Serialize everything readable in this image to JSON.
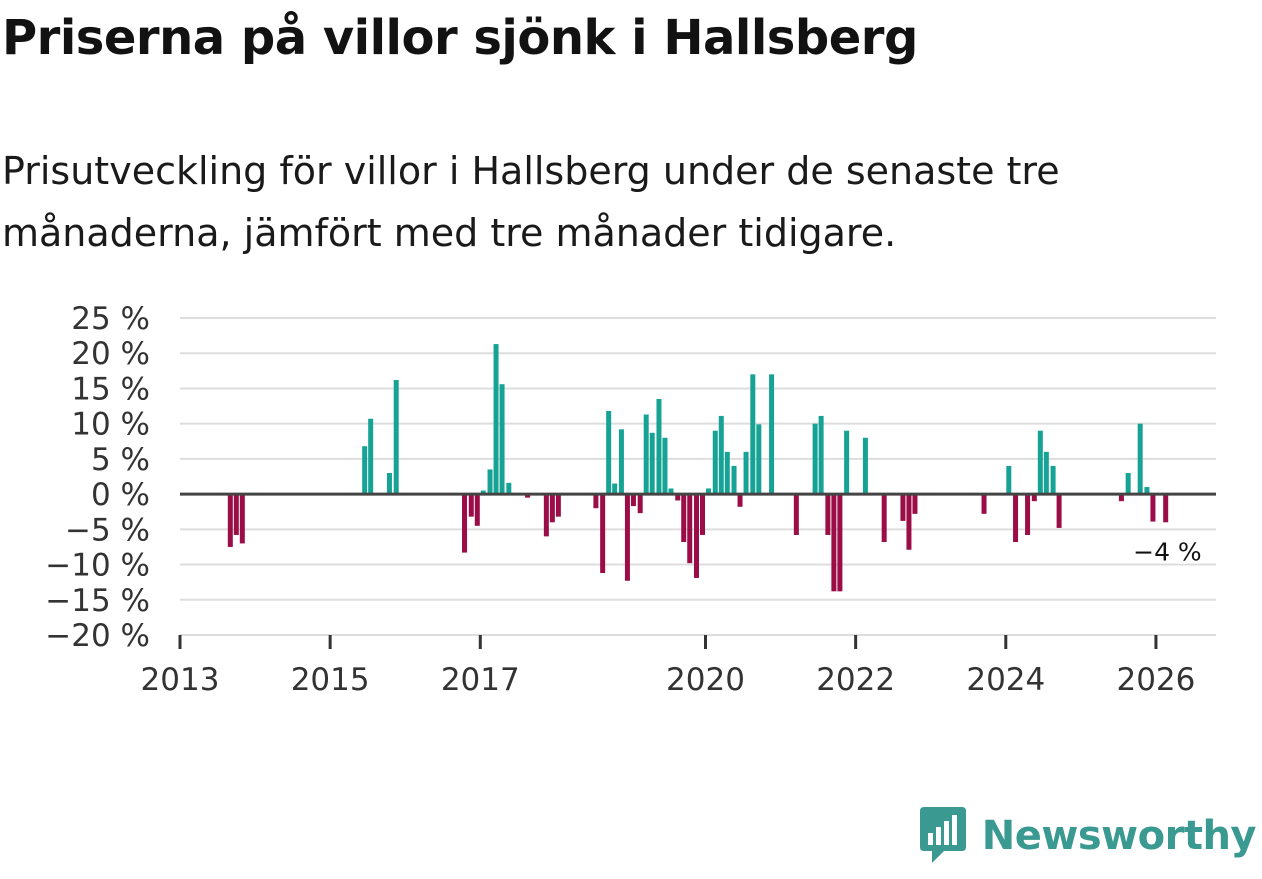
{
  "header": {
    "title": "Priserna på villor sjönk i Hallsberg",
    "subtitle": "Prisutveckling för villor i Hallsberg under de senaste tre månaderna, jämfört med tre månader tidigare."
  },
  "brand": {
    "name": "Newsworthy",
    "icon": "newsworthy-logo-icon",
    "color": "#3a9a91"
  },
  "colors": {
    "positive": "#16a395",
    "negative": "#9b0d47",
    "zero_line": "#444444",
    "grid": "#dddddd"
  },
  "chart_data": {
    "type": "bar",
    "title": "Priserna på villor sjönk i Hallsberg",
    "ylim": [
      -20,
      25
    ],
    "yticks": [
      25,
      20,
      15,
      10,
      5,
      0,
      -5,
      -10,
      -15,
      -20
    ],
    "ytick_labels": [
      "25 %",
      "20 %",
      "15 %",
      "10 %",
      "5 %",
      "0 %",
      "−5 %",
      "−10 %",
      "−15 %",
      "−20 %"
    ],
    "xlim": [
      2013,
      2026.8
    ],
    "xticks": [
      2013,
      2015,
      2017,
      2020,
      2022,
      2024,
      2026
    ],
    "xtick_labels": [
      "2013",
      "2015",
      "2017",
      "2020",
      "2022",
      "2024",
      "2026"
    ],
    "last_value_label": "−4 %",
    "series": [
      {
        "name": "Prisutveckling",
        "x": [
          2013.67,
          2013.75,
          2013.83,
          2015.46,
          2015.54,
          2015.79,
          2015.88,
          2016.79,
          2016.88,
          2016.96,
          2017.04,
          2017.13,
          2017.21,
          2017.29,
          2017.38,
          2017.63,
          2017.88,
          2017.96,
          2018.04,
          2018.54,
          2018.63,
          2018.71,
          2018.79,
          2018.88,
          2018.96,
          2019.04,
          2019.13,
          2019.21,
          2019.29,
          2019.38,
          2019.46,
          2019.54,
          2019.63,
          2019.71,
          2019.79,
          2019.88,
          2019.96,
          2020.04,
          2020.13,
          2020.21,
          2020.29,
          2020.38,
          2020.46,
          2020.54,
          2020.63,
          2020.71,
          2020.88,
          2021.21,
          2021.46,
          2021.54,
          2021.63,
          2021.71,
          2021.79,
          2021.88,
          2022.13,
          2022.38,
          2022.63,
          2022.71,
          2022.79,
          2023.71,
          2024.04,
          2024.13,
          2024.29,
          2024.38,
          2024.46,
          2024.54,
          2024.63,
          2024.71,
          2025.54,
          2025.63,
          2025.79,
          2025.88,
          2025.96,
          2026.13
        ],
        "values": [
          -7.5,
          -5.8,
          -7,
          6.8,
          10.7,
          3,
          16.2,
          -8.3,
          -3.2,
          -4.5,
          0.5,
          3.5,
          21.3,
          15.6,
          1.6,
          -0.5,
          -6,
          -4,
          -3.2,
          -2,
          -11.2,
          11.8,
          1.5,
          9.2,
          -12.3,
          -1.7,
          -2.7,
          11.3,
          8.7,
          13.5,
          8,
          0.8,
          -0.9,
          -6.8,
          -9.8,
          -11.9,
          -5.8,
          0.8,
          9,
          11.1,
          6,
          4,
          -1.8,
          6,
          17,
          9.9,
          17,
          -5.8,
          10,
          11.1,
          -5.8,
          -13.8,
          -13.8,
          9,
          8,
          -6.8,
          -3.8,
          -7.9,
          -2.8,
          -2.8,
          4,
          -6.8,
          -5.8,
          -1,
          9,
          6,
          4,
          -4.8,
          -1,
          3,
          10,
          1,
          -3.9,
          -4
        ],
        "positive_color": "#16a395",
        "negative_color": "#9b0d47"
      }
    ]
  }
}
